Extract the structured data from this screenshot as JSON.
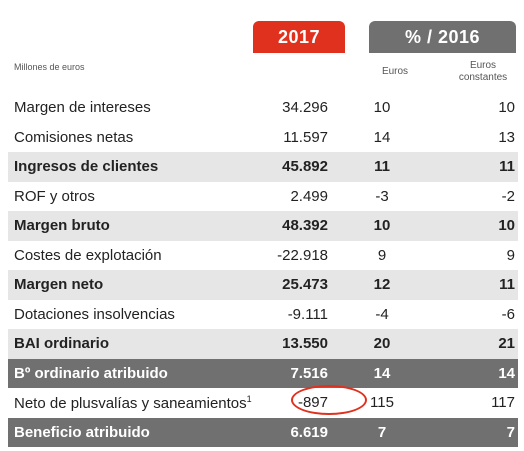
{
  "header": {
    "year": "2017",
    "comparison": "% / 2016"
  },
  "units_label": "Millones de euros",
  "subheaders": {
    "euros": "Euros",
    "euros_constantes_line1": "Euros",
    "euros_constantes_line2": "constantes"
  },
  "rows": [
    {
      "label": "Margen de intereses",
      "v2017": "34.296",
      "euros": "10",
      "const": "10"
    },
    {
      "label": "Comisiones netas",
      "v2017": "11.597",
      "euros": "14",
      "const": "13"
    },
    {
      "label": "Ingresos de clientes",
      "v2017": "45.892",
      "euros": "11",
      "const": "11"
    },
    {
      "label": "ROF y otros",
      "v2017": "2.499",
      "euros": "-3",
      "const": "-2"
    },
    {
      "label": "Margen bruto",
      "v2017": "48.392",
      "euros": "10",
      "const": "10"
    },
    {
      "label": "Costes de explotación",
      "v2017": "-22.918",
      "euros": "9",
      "const": "9"
    },
    {
      "label": "Margen neto",
      "v2017": "25.473",
      "euros": "12",
      "const": "11"
    },
    {
      "label": "Dotaciones insolvencias",
      "v2017": "-9.111",
      "euros": "-4",
      "const": "-6"
    },
    {
      "label": "BAI ordinario",
      "v2017": "13.550",
      "euros": "20",
      "const": "21"
    },
    {
      "label": "Bº ordinario atribuido",
      "v2017": "7.516",
      "euros": "14",
      "const": "14"
    },
    {
      "label": "Neto de plusvalías y saneamientos",
      "sup": "1",
      "v2017": "-897",
      "euros": "115",
      "const": "117"
    },
    {
      "label": "Beneficio atribuido",
      "v2017": "6.619",
      "euros": "7",
      "const": "7"
    }
  ],
  "colors": {
    "accent_red": "#e0301e",
    "header_gray": "#707070",
    "bold_row_bg": "#e6e6e6"
  }
}
